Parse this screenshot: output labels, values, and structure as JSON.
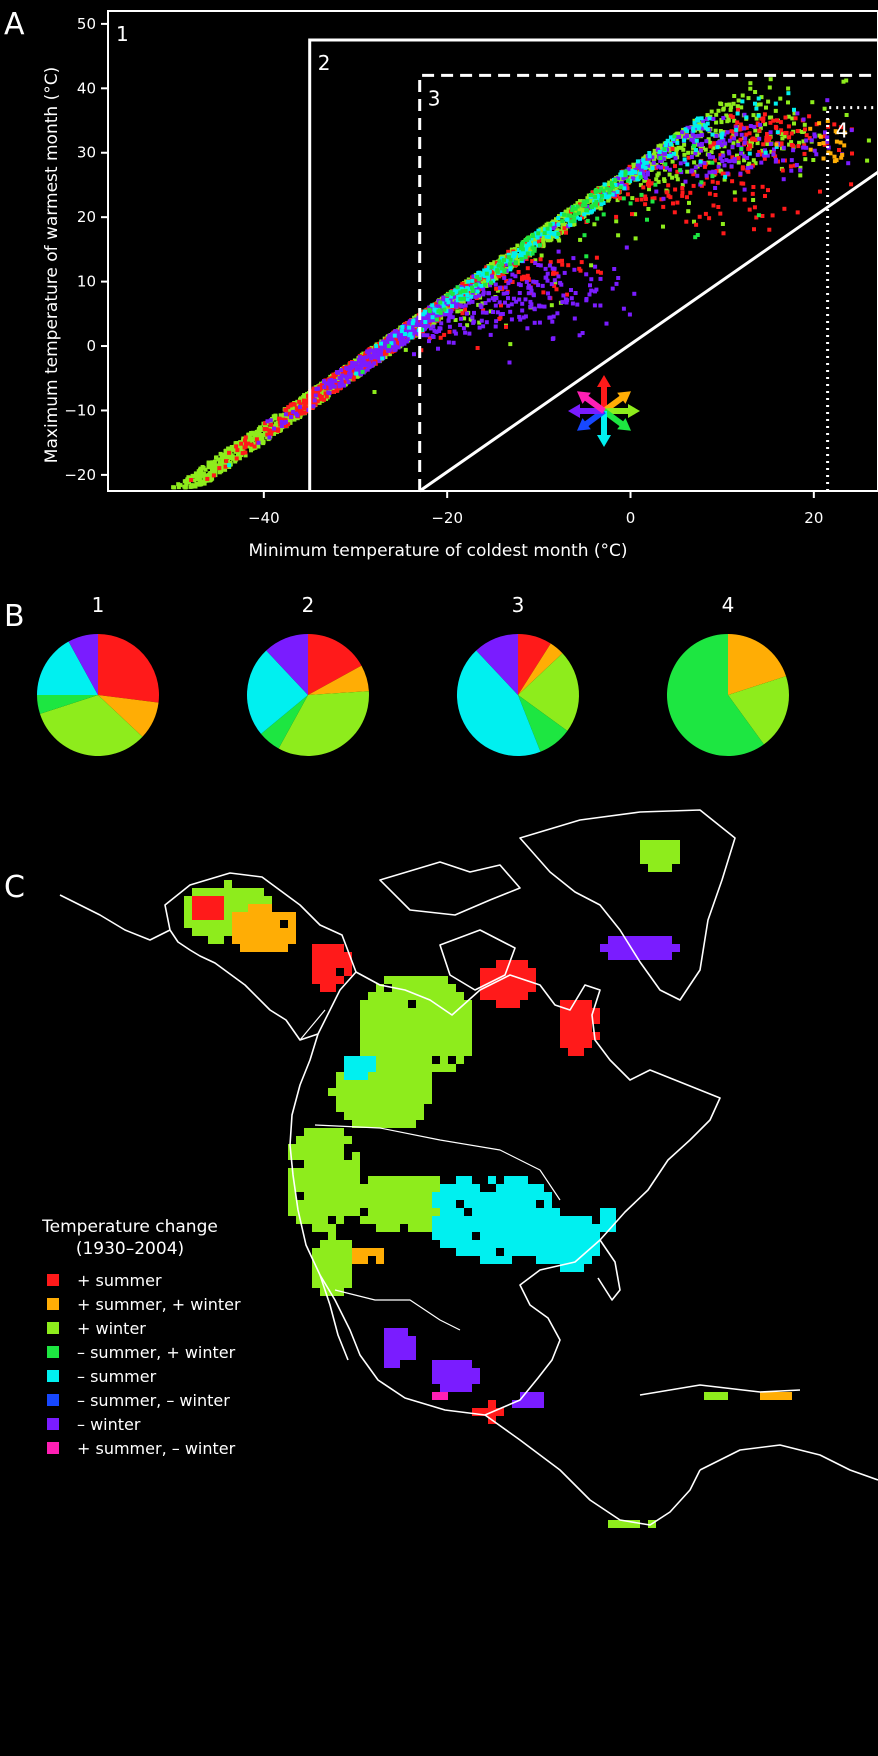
{
  "panels": {
    "a": "A",
    "b": "B",
    "c": "C"
  },
  "colors": {
    "red": "#ff1a1a",
    "orange": "#ffad05",
    "lime": "#8eec1c",
    "green": "#1de641",
    "cyan": "#00f0f0",
    "blue": "#1748ff",
    "purple": "#7a1cff",
    "magenta": "#ff1fb4"
  },
  "chart_data": [
    {
      "type": "scatter",
      "xlabel": "Minimum temperature of coldest month (°C)",
      "ylabel": "Maximum temperature of warmest month (°C)",
      "xlim": [
        -57,
        27
      ],
      "ylim": [
        -22.5,
        52
      ],
      "xticks": [
        -40,
        -20,
        0,
        20
      ],
      "yticks": [
        -20,
        -10,
        0,
        10,
        20,
        30,
        40,
        50
      ],
      "region_labels": [
        "1",
        "2",
        "3",
        "4"
      ],
      "region_bounds": [
        {
          "label": "1",
          "xmin": -57,
          "ymax": 52,
          "line": "solid"
        },
        {
          "label": "2",
          "xmin": -35,
          "ymax": 47.5,
          "line": "solid"
        },
        {
          "label": "3",
          "xmin": -23,
          "ymax": 42,
          "line": "dashed"
        },
        {
          "label": "4",
          "xmin": 21.5,
          "ymax": 37,
          "line": "dotted"
        }
      ],
      "one_to_one_line": [
        [
          -23,
          -22.5
        ],
        [
          27,
          27
        ]
      ],
      "clusters": [
        {
          "color": "lime",
          "cx": -46,
          "cy": 1,
          "sx": 7,
          "sy": 4,
          "n": 520
        },
        {
          "color": "lime",
          "cx": -30,
          "cy": 18,
          "sx": 6,
          "sy": 6,
          "n": 640
        },
        {
          "color": "lime",
          "cx": -12,
          "cy": 28,
          "sx": 8,
          "sy": 5,
          "n": 560
        },
        {
          "color": "lime",
          "cx": 6,
          "cy": 33,
          "sx": 7,
          "sy": 4,
          "n": 380
        },
        {
          "color": "lime",
          "cx": -24,
          "cy": 10,
          "sx": 6,
          "sy": 4,
          "n": 220
        },
        {
          "color": "red",
          "cx": -31,
          "cy": 8,
          "sx": 6,
          "sy": 4,
          "n": 380
        },
        {
          "color": "red",
          "cx": -18,
          "cy": 12,
          "sx": 6,
          "sy": 2.5,
          "n": 220
        },
        {
          "color": "red",
          "cx": 6,
          "cy": 26,
          "sx": 8,
          "sy": 4,
          "n": 160
        },
        {
          "color": "red",
          "cx": 16,
          "cy": 33,
          "sx": 3,
          "sy": 1.5,
          "n": 80
        },
        {
          "color": "purple",
          "cx": -26,
          "cy": 5,
          "sx": 5,
          "sy": 2.5,
          "n": 340
        },
        {
          "color": "purple",
          "cx": -12,
          "cy": 8,
          "sx": 6,
          "sy": 3,
          "n": 200
        },
        {
          "color": "purple",
          "cx": 8,
          "cy": 31,
          "sx": 7,
          "sy": 3,
          "n": 220
        },
        {
          "color": "cyan",
          "cx": -15,
          "cy": 32,
          "sx": 6,
          "sy": 3,
          "n": 160
        },
        {
          "color": "cyan",
          "cx": 4,
          "cy": 34,
          "sx": 6,
          "sy": 3,
          "n": 110
        },
        {
          "color": "green",
          "cx": -8,
          "cy": 27,
          "sx": 8,
          "sy": 5,
          "n": 140
        },
        {
          "color": "orange",
          "cx": 21,
          "cy": 31,
          "sx": 2,
          "sy": 1.5,
          "n": 22
        }
      ]
    },
    {
      "type": "pie",
      "legend_ref": "legend",
      "pies": [
        {
          "label": "1",
          "slices": [
            {
              "color": "red",
              "value": 27
            },
            {
              "color": "orange",
              "value": 10
            },
            {
              "color": "lime",
              "value": 33
            },
            {
              "color": "green",
              "value": 5
            },
            {
              "color": "cyan",
              "value": 17
            },
            {
              "color": "purple",
              "value": 8
            }
          ]
        },
        {
          "label": "2",
          "slices": [
            {
              "color": "red",
              "value": 17
            },
            {
              "color": "orange",
              "value": 7
            },
            {
              "color": "lime",
              "value": 34
            },
            {
              "color": "green",
              "value": 6
            },
            {
              "color": "cyan",
              "value": 24
            },
            {
              "color": "purple",
              "value": 12
            }
          ]
        },
        {
          "label": "3",
          "slices": [
            {
              "color": "red",
              "value": 9
            },
            {
              "color": "orange",
              "value": 4
            },
            {
              "color": "lime",
              "value": 22
            },
            {
              "color": "green",
              "value": 9
            },
            {
              "color": "cyan",
              "value": 44
            },
            {
              "color": "purple",
              "value": 12
            }
          ]
        },
        {
          "label": "4",
          "slices": [
            {
              "color": "orange",
              "value": 20
            },
            {
              "color": "lime",
              "value": 20
            },
            {
              "color": "green",
              "value": 60
            }
          ]
        }
      ]
    }
  ],
  "legend": {
    "title_line1": "Temperature change",
    "title_line2": "(1930–2004)",
    "items": [
      {
        "label": "+ summer",
        "color": "red"
      },
      {
        "label": "+ summer, + winter",
        "color": "orange"
      },
      {
        "label": "+ winter",
        "color": "lime"
      },
      {
        "label": "– summer, + winter",
        "color": "green"
      },
      {
        "label": "– summer",
        "color": "cyan"
      },
      {
        "label": "– summer, – winter",
        "color": "blue"
      },
      {
        "label": "– winter",
        "color": "purple"
      },
      {
        "label": "+ summer, – winter",
        "color": "magenta"
      }
    ]
  },
  "map_regions": [
    {
      "color": "lime",
      "name": "alaska-west"
    },
    {
      "color": "orange",
      "name": "alaska-interior"
    },
    {
      "color": "red",
      "name": "alaska-southeast"
    },
    {
      "color": "lime",
      "name": "canada-west"
    },
    {
      "color": "red",
      "name": "hudson-bay"
    },
    {
      "color": "lime",
      "name": "greenland-north"
    },
    {
      "color": "purple",
      "name": "greenland-east"
    },
    {
      "color": "lime",
      "name": "western-us"
    },
    {
      "color": "orange",
      "name": "southwest-us"
    },
    {
      "color": "cyan",
      "name": "central-us"
    },
    {
      "color": "purple",
      "name": "mexico"
    },
    {
      "color": "lime",
      "name": "central-america"
    },
    {
      "color": "orange",
      "name": "caribbean"
    }
  ]
}
